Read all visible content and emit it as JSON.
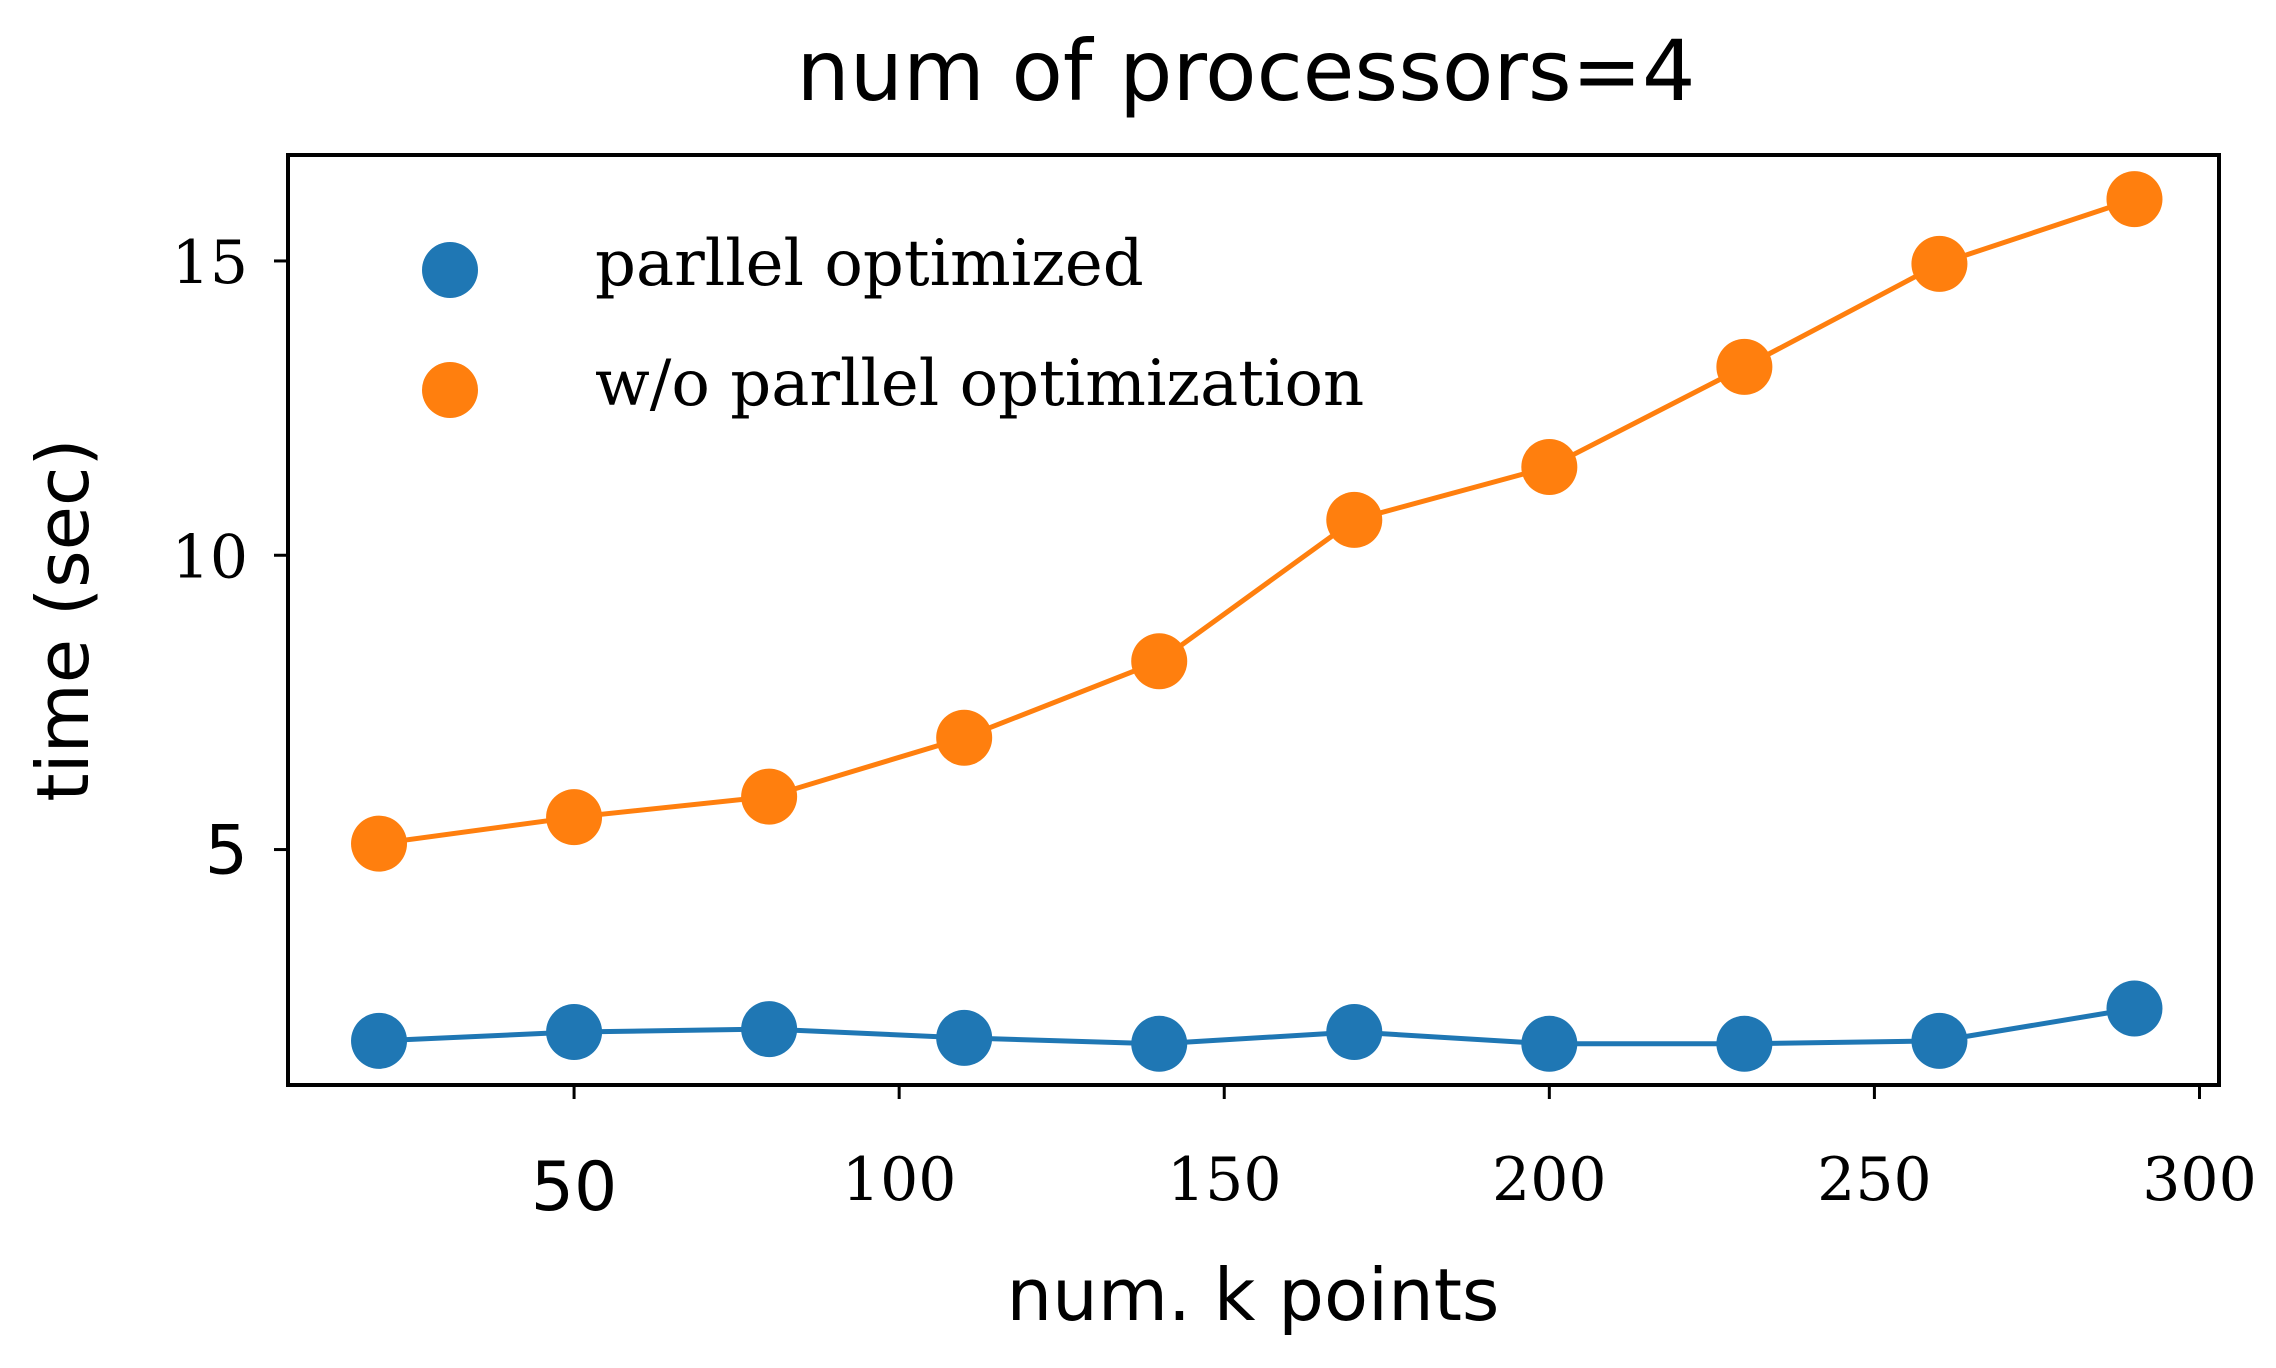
{
  "chart_data": {
    "type": "line",
    "title": "num of processors=4",
    "xlabel": "num. k points",
    "ylabel": "time (sec)",
    "xlim": [
      6,
      303
    ],
    "ylim": [
      1.0,
      16.8
    ],
    "x_ticks": [
      50,
      100,
      150,
      200,
      250,
      300
    ],
    "x_tick_labels": [
      "50",
      "100",
      "150",
      "200",
      "250",
      "300"
    ],
    "y_ticks": [
      5,
      10,
      15
    ],
    "y_tick_labels": [
      "5",
      "10",
      "15"
    ],
    "grid": false,
    "legend_position": "upper-left",
    "x": [
      20,
      50,
      80,
      110,
      140,
      170,
      200,
      230,
      260,
      290
    ],
    "series": [
      {
        "name": "parllel optimized",
        "color": "#1f77b4",
        "values": [
          1.75,
          1.9,
          1.95,
          1.8,
          1.7,
          1.9,
          1.7,
          1.7,
          1.75,
          2.3
        ]
      },
      {
        "name": "w/o parllel optimization",
        "color": "#ff7f0e",
        "values": [
          5.1,
          5.55,
          5.9,
          6.9,
          8.2,
          10.6,
          11.5,
          13.2,
          14.95,
          16.05
        ]
      }
    ]
  }
}
